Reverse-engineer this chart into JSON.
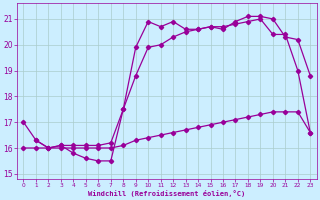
{
  "xlabel": "Windchill (Refroidissement éolien,°C)",
  "bg_color": "#cceeff",
  "grid_color": "#aacccc",
  "line_color": "#990099",
  "xlim": [
    -0.5,
    23.5
  ],
  "ylim": [
    14.8,
    21.6
  ],
  "yticks": [
    15,
    16,
    17,
    18,
    19,
    20,
    21
  ],
  "xticks": [
    0,
    1,
    2,
    3,
    4,
    5,
    6,
    7,
    8,
    9,
    10,
    11,
    12,
    13,
    14,
    15,
    16,
    17,
    18,
    19,
    20,
    21,
    22,
    23
  ],
  "line1_x": [
    0,
    1,
    2,
    3,
    4,
    5,
    6,
    7,
    8,
    9,
    10,
    11,
    12,
    13,
    14,
    15,
    16,
    17,
    18,
    19,
    20,
    21,
    22,
    23
  ],
  "line1_y": [
    17.0,
    16.3,
    16.0,
    16.1,
    15.8,
    15.6,
    15.5,
    15.5,
    17.5,
    19.9,
    20.9,
    20.7,
    20.9,
    20.6,
    20.6,
    20.7,
    20.6,
    20.9,
    21.1,
    21.1,
    21.0,
    20.3,
    20.2,
    18.8
  ],
  "line2_x": [
    1,
    2,
    3,
    4,
    5,
    6,
    7,
    8,
    9,
    10,
    11,
    12,
    13,
    14,
    15,
    16,
    17,
    18,
    19,
    20,
    21,
    22,
    23
  ],
  "line2_y": [
    16.3,
    16.0,
    16.1,
    16.1,
    16.1,
    16.1,
    16.2,
    17.5,
    18.8,
    19.9,
    20.0,
    20.3,
    20.5,
    20.6,
    20.7,
    20.7,
    20.8,
    20.9,
    21.0,
    20.4,
    20.4,
    19.0,
    16.6
  ],
  "line3_x": [
    0,
    1,
    2,
    3,
    4,
    5,
    6,
    7,
    8,
    9,
    10,
    11,
    12,
    13,
    14,
    15,
    16,
    17,
    18,
    19,
    20,
    21,
    22,
    23
  ],
  "line3_y": [
    16.0,
    16.0,
    16.0,
    16.0,
    16.0,
    16.0,
    16.0,
    16.0,
    16.1,
    16.3,
    16.4,
    16.5,
    16.6,
    16.7,
    16.8,
    16.9,
    17.0,
    17.1,
    17.2,
    17.3,
    17.4,
    17.4,
    17.4,
    16.6
  ]
}
